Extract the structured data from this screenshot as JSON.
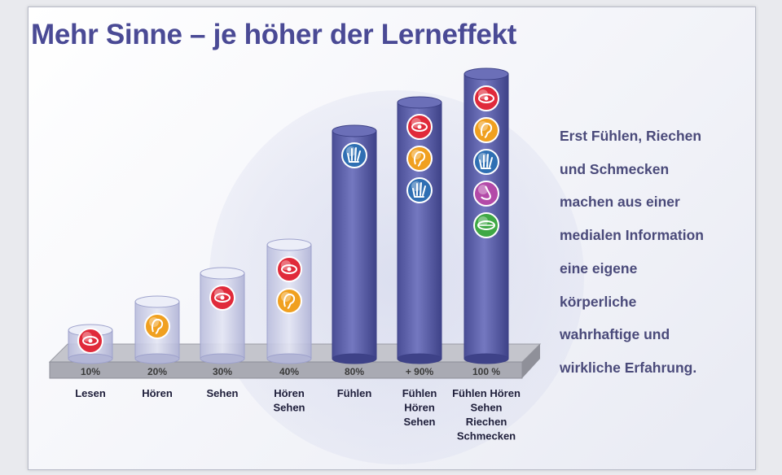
{
  "title": "Mehr Sinne – je höher der Lerneffekt",
  "side_text": [
    "Erst Fühlen, Riechen",
    "und Schmecken",
    "machen aus einer",
    "medialen Information",
    "eine eigene",
    "körperliche",
    "wahrhaftige und",
    "wirkliche  Erfahrung."
  ],
  "chart_data": {
    "type": "bar",
    "title": "Mehr Sinne – je höher der Lerneffekt",
    "categories": [
      "Lesen",
      "Hören",
      "Sehen",
      "Hören Sehen",
      "Fühlen",
      "Fühlen Hören Sehen",
      "Fühlen Hören Sehen Riechen Schmecken"
    ],
    "category_lines": [
      [
        "Lesen"
      ],
      [
        "Hören"
      ],
      [
        "Sehen"
      ],
      [
        "Hören",
        "Sehen"
      ],
      [
        "Fühlen"
      ],
      [
        "Fühlen",
        "Hören",
        "Sehen"
      ],
      [
        "Fühlen Hören",
        "Sehen",
        "Riechen",
        "Schmecken"
      ]
    ],
    "values": [
      10,
      20,
      30,
      40,
      80,
      90,
      100
    ],
    "value_labels": [
      "10%",
      "20%",
      "30%",
      "40%",
      "80%",
      "+ 90%",
      "100 %"
    ],
    "ylim": [
      0,
      100
    ],
    "senses": [
      [
        "eye"
      ],
      [
        "ear"
      ],
      [
        "eye"
      ],
      [
        "eye",
        "ear"
      ],
      [
        "hand"
      ],
      [
        "eye",
        "ear",
        "hand"
      ],
      [
        "eye",
        "ear",
        "hand",
        "nose",
        "mouth"
      ]
    ],
    "colors": {
      "glass_bar": "#c8cbe6",
      "solid_bar": "#5a5ea6",
      "eye": "#e02a3a",
      "ear": "#f0a020",
      "hand": "#2f6fb3",
      "nose": "#b34aa8",
      "mouth": "#3fa845",
      "platform": "#a9aab3"
    }
  }
}
